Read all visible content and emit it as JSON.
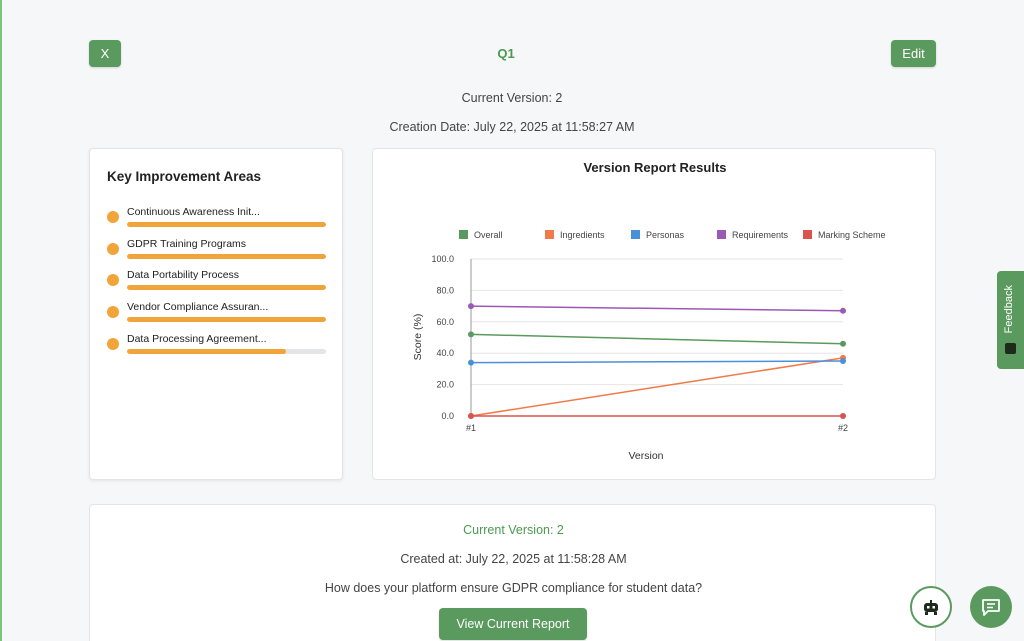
{
  "header": {
    "close_label": "X",
    "title": "Q1",
    "edit_label": "Edit",
    "current_version": "Current Version: 2",
    "creation_date": "Creation Date: July 22, 2025 at 11:58:27 AM"
  },
  "improvement": {
    "title": "Key Improvement Areas",
    "items": [
      {
        "label": "Continuous Awareness Init...",
        "progress": 1.0
      },
      {
        "label": "GDPR Training Programs",
        "progress": 1.0
      },
      {
        "label": "Data Portability Process",
        "progress": 1.0
      },
      {
        "label": "Vendor Compliance Assuran...",
        "progress": 1.0
      },
      {
        "label": "Data Processing Agreement...",
        "progress": 0.8
      }
    ]
  },
  "chart_data": {
    "type": "line",
    "title": "Version Report Results",
    "xlabel": "Version",
    "ylabel": "Score (%)",
    "categories": [
      "#1",
      "#2"
    ],
    "ylim": [
      0,
      100
    ],
    "yticks": [
      "0.0",
      "20.0",
      "40.0",
      "60.0",
      "80.0",
      "100.0"
    ],
    "legend_position": "top",
    "series": [
      {
        "name": "Overall",
        "color": "#5b9a5e",
        "values": [
          52,
          46
        ]
      },
      {
        "name": "Ingredients",
        "color": "#f07a4a",
        "values": [
          0,
          37
        ]
      },
      {
        "name": "Personas",
        "color": "#4a90d9",
        "values": [
          34,
          35
        ]
      },
      {
        "name": "Requirements",
        "color": "#9b59b6",
        "values": [
          70,
          67
        ]
      },
      {
        "name": "Marking Scheme",
        "color": "#d9534f",
        "values": [
          0,
          0
        ]
      }
    ]
  },
  "bottom": {
    "current_version": "Current Version: 2",
    "created_at": "Created at: July 22, 2025 at 11:58:28 AM",
    "question": "How does your platform ensure GDPR compliance for student data?",
    "report_button": "View Current Report"
  },
  "feedback_label": "Feedback",
  "icons": {
    "bot": "bot-icon",
    "chat": "chat-icon"
  }
}
